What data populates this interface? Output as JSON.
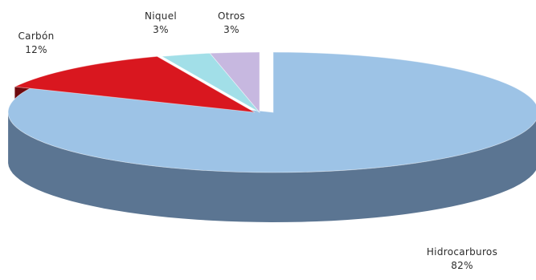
{
  "chart_data": {
    "type": "pie",
    "slices": [
      {
        "name": "Hidrocarburos",
        "value": 82,
        "label": "82%",
        "color": "#9dc3e6",
        "side_color": "#5b7592"
      },
      {
        "name": "Carbón",
        "value": 12,
        "label": "12%",
        "color": "#d9171f",
        "side_color": "#8e0f14"
      },
      {
        "name": "Niquel",
        "value": 3,
        "label": "3%",
        "color": "#a2dfe8",
        "side_color": "#5e97a0"
      },
      {
        "name": "Otros",
        "value": 3,
        "label": "3%",
        "color": "#c7b8e0",
        "side_color": "#8a7aa6"
      }
    ]
  }
}
